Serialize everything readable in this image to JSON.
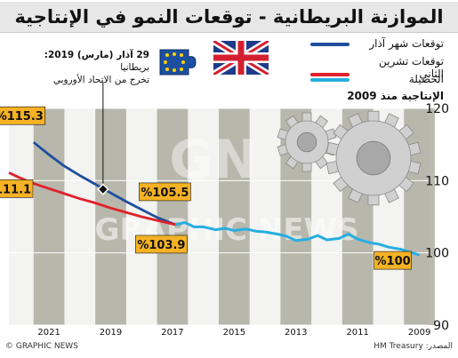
{
  "title": "الموازنة البريطانية - توقعات النمو في الإنتاجية",
  "subtitle": "الإنتاجية منذ 2009",
  "note": {
    "date": "29 آذار (مارس) 2019:",
    "line1": "بريطانيا",
    "line2": "تخرج من الاتحاد الأوروبي"
  },
  "legend": [
    {
      "label": "توقعات شهر آذار",
      "color": "#1f4e9e"
    },
    {
      "label": "توقعات تشرين الثاني",
      "color": "#e0202a"
    },
    {
      "label": "الحصيلة",
      "color": "#27aee0"
    }
  ],
  "footer": {
    "credit": "© GRAPHIC NEWS",
    "source": "المصدر: HM Treasury"
  },
  "watermark": "GRAPHIC NEWS",
  "colors": {
    "march": "#1f4e9e",
    "november": "#e0202a",
    "outturn": "#27aee0",
    "callout": "#f5b224",
    "bar": "#9a9a8a"
  },
  "chart_data": {
    "type": "line",
    "title": "الموازنة البريطانية - توقعات النمو في الإنتاجية",
    "ylabel": "الإنتاجية منذ 2009",
    "x_axis_reversed": true,
    "xlim": [
      2008.7,
      2022.3
    ],
    "ylim": [
      90,
      120
    ],
    "yticks": [
      90,
      100,
      110,
      120
    ],
    "xtick_labels": [
      "2021",
      "2019",
      "2017",
      "2015",
      "2013",
      "2011",
      "2009"
    ],
    "series": [
      {
        "name": "توقعات شهر آذار",
        "color": "#1f4e9e",
        "x": [
          2016.9,
          2017.5,
          2018,
          2018.5,
          2019,
          2019.5,
          2020,
          2020.5,
          2021,
          2021.5
        ],
        "y": [
          103.9,
          104.9,
          106.0,
          107.1,
          108.3,
          109.5,
          110.7,
          112.0,
          113.6,
          115.3
        ]
      },
      {
        "name": "توقعات تشرين الثاني",
        "color": "#e0202a",
        "x": [
          2016.9,
          2017.5,
          2018,
          2018.5,
          2019,
          2019.5,
          2020,
          2020.5,
          2021,
          2021.5,
          2022,
          2022.3
        ],
        "y": [
          103.9,
          104.5,
          105.0,
          105.6,
          106.2,
          106.9,
          107.5,
          108.2,
          108.9,
          109.6,
          110.5,
          111.1
        ]
      },
      {
        "name": "الحصيلة",
        "color": "#27aee0",
        "x": [
          2009,
          2009.3,
          2009.6,
          2010,
          2010.3,
          2010.6,
          2011,
          2011.3,
          2011.6,
          2012,
          2012.3,
          2012.6,
          2013,
          2013.3,
          2013.6,
          2014,
          2014.3,
          2014.6,
          2015,
          2015.3,
          2015.6,
          2016,
          2016.3,
          2016.6,
          2016.9
        ],
        "y": [
          99.7,
          100.1,
          100.5,
          100.8,
          101.2,
          101.4,
          101.9,
          102.6,
          102.0,
          101.8,
          102.4,
          101.9,
          101.7,
          102.3,
          102.6,
          102.9,
          103.0,
          103.3,
          103.1,
          103.4,
          103.2,
          103.6,
          103.6,
          104.2,
          103.9
        ]
      }
    ],
    "annotations": [
      {
        "text": "%115.3",
        "x": 2021.5,
        "y": 115.3,
        "color": "#f5b224"
      },
      {
        "text": "%111.1",
        "x": 2022.3,
        "y": 111.1,
        "color": "#f5b224"
      },
      {
        "text": "%105.5",
        "x": 2016.9,
        "y": 105.5,
        "color": "#f5b224"
      },
      {
        "text": "%103.9",
        "x": 2016.9,
        "y": 103.9,
        "color": "#f5b224"
      },
      {
        "text": "%100",
        "x": 2009,
        "y": 99.7,
        "color": "#f5b224"
      }
    ],
    "event_marker": {
      "x": 2019.25,
      "y": 108.8
    },
    "grid": true
  }
}
